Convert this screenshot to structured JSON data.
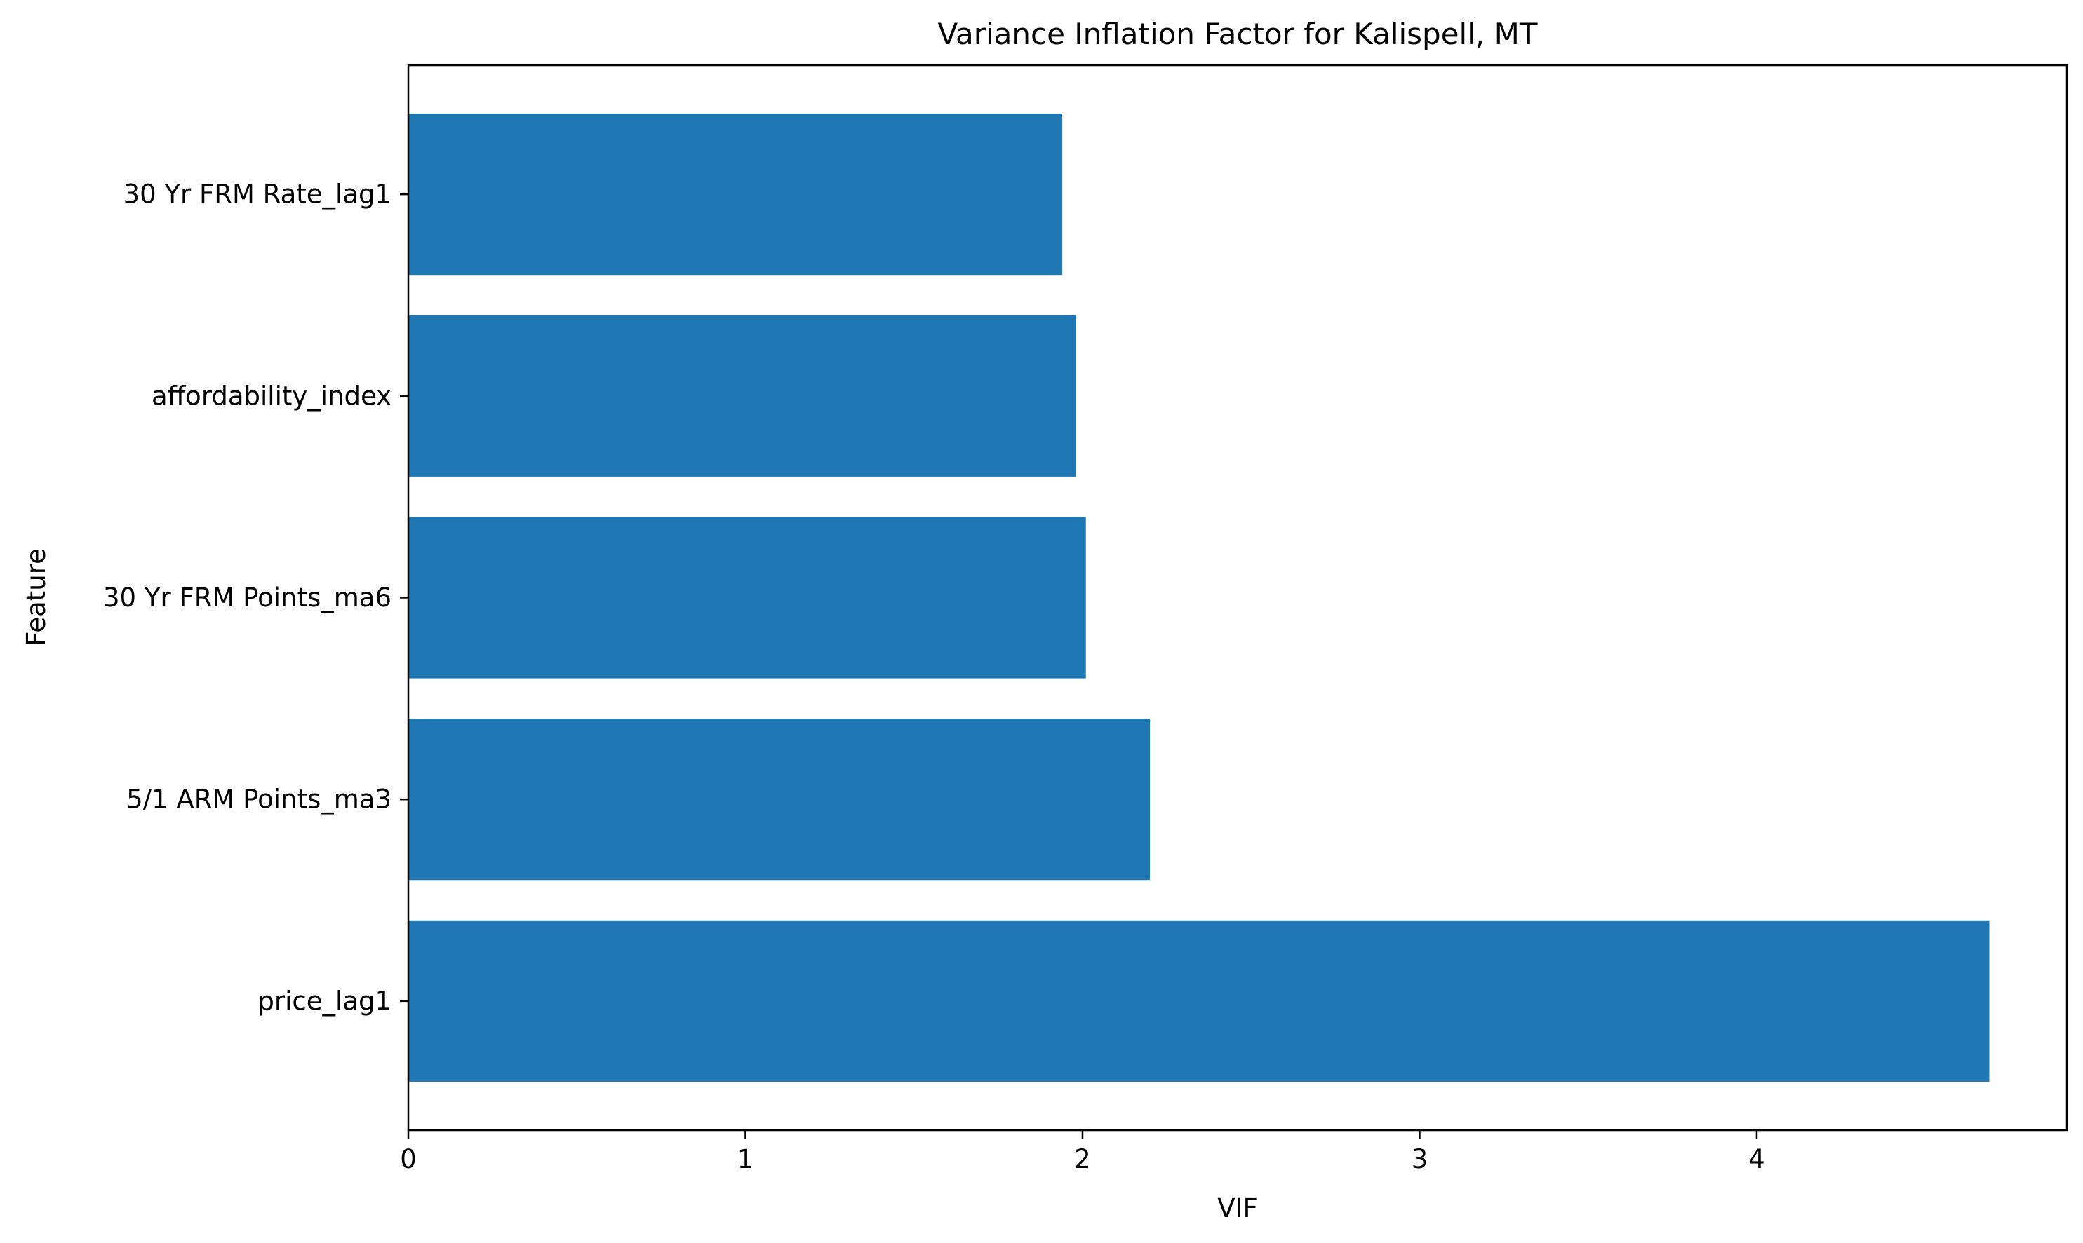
{
  "chart_data": {
    "type": "bar",
    "orientation": "horizontal",
    "title": "Variance Inflation Factor for Kalispell, MT",
    "xlabel": "VIF",
    "ylabel": "Feature",
    "categories": [
      "price_lag1",
      "5/1 ARM Points_ma3",
      "30 Yr FRM Points_ma6",
      "affordability_index",
      "30 Yr FRM Rate_lag1"
    ],
    "values": [
      4.69,
      2.2,
      2.01,
      1.98,
      1.94
    ],
    "xlim": [
      0,
      4.92
    ],
    "xticks": [
      "0",
      "1",
      "2",
      "3",
      "4"
    ],
    "grid": false,
    "bar_color": "#1f77b4"
  }
}
